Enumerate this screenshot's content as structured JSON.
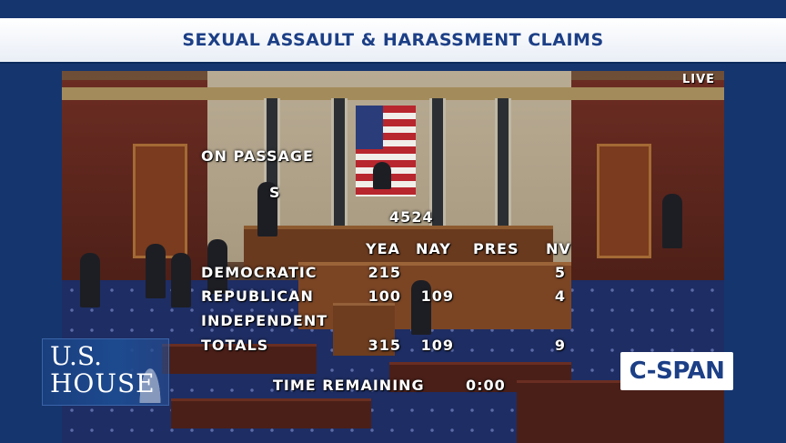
{
  "banner": {
    "title": "SEXUAL ASSAULT & HARASSMENT CLAIMS"
  },
  "video": {
    "live_label": "LIVE"
  },
  "tally": {
    "motion": "ON PASSAGE",
    "bill_prefix": "S",
    "bill_number": "4524",
    "columns": [
      "YEA",
      "NAY",
      "PRES",
      "NV"
    ],
    "rows": [
      {
        "party": "DEMOCRATIC",
        "yea": "215",
        "nay": "",
        "pres": "",
        "nv": "5"
      },
      {
        "party": "REPUBLICAN",
        "yea": "100",
        "nay": "109",
        "pres": "",
        "nv": "4"
      },
      {
        "party": "INDEPENDENT",
        "yea": "",
        "nay": "",
        "pres": "",
        "nv": ""
      },
      {
        "party": "TOTALS",
        "yea": "315",
        "nay": "109",
        "pres": "",
        "nv": "9"
      }
    ],
    "time_label": "TIME REMAINING",
    "time_value": "0:00"
  },
  "logos": {
    "house_line1": "U.S.",
    "house_line2": "HOUSE",
    "cspan": "C-SPAN"
  }
}
